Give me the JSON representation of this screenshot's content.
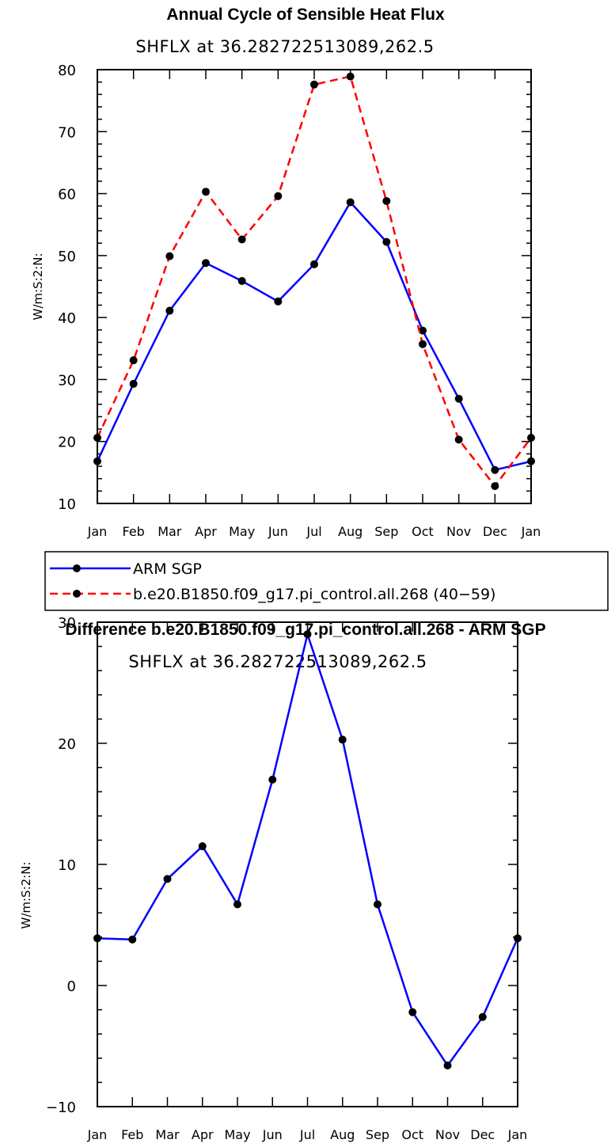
{
  "chart_data": [
    {
      "type": "line",
      "title": "Annual Cycle of Sensible Heat Flux",
      "subtitle": "SHFLX at 36.282722513089,262.5",
      "ylabel": "W/m:S:2:N:",
      "xlabel": "",
      "categories": [
        "Jan",
        "Feb",
        "Mar",
        "Apr",
        "May",
        "Jun",
        "Jul",
        "Aug",
        "Sep",
        "Oct",
        "Nov",
        "Dec",
        "Jan"
      ],
      "ylim": [
        10,
        80
      ],
      "yticks": [
        10,
        20,
        30,
        40,
        50,
        60,
        70,
        80
      ],
      "grid": false,
      "legend_position": "bottom",
      "series": [
        {
          "name": "ARM SGP",
          "color": "#0000ff",
          "style": "solid",
          "marker": "black-dot",
          "values": [
            16.8,
            29.3,
            41.1,
            48.8,
            45.9,
            42.6,
            48.6,
            58.6,
            52.2,
            37.9,
            26.9,
            15.4,
            16.8
          ]
        },
        {
          "name": "b.e20.B1850.f09_g17.pi_control.all.268 (40−59)",
          "color": "#ff0000",
          "style": "dashed",
          "marker": "black-dot",
          "values": [
            20.6,
            33.1,
            49.9,
            60.3,
            52.6,
            59.6,
            77.6,
            78.9,
            58.8,
            35.7,
            20.3,
            12.8,
            20.6
          ]
        }
      ]
    },
    {
      "type": "line",
      "title": "Difference b.e20.B1850.f09_g17.pi_control.all.268 - ARM SGP",
      "subtitle": "SHFLX at 36.282722513089,262.5",
      "ylabel": "W/m:S:2:N:",
      "xlabel": "",
      "categories": [
        "Jan",
        "Feb",
        "Mar",
        "Apr",
        "May",
        "Jun",
        "Jul",
        "Aug",
        "Sep",
        "Oct",
        "Nov",
        "Dec",
        "Jan"
      ],
      "ylim": [
        -10,
        30
      ],
      "yticks": [
        -10,
        0,
        10,
        20,
        30
      ],
      "ytick_labels": [
        "−10",
        "0",
        "10",
        "20",
        "30"
      ],
      "grid": false,
      "series": [
        {
          "color": "#0000ff",
          "style": "solid",
          "marker": "black-dot",
          "values": [
            3.9,
            3.8,
            8.8,
            11.5,
            6.7,
            17.0,
            29.0,
            20.3,
            6.7,
            -2.2,
            -6.6,
            -2.6,
            3.9
          ]
        }
      ]
    }
  ]
}
